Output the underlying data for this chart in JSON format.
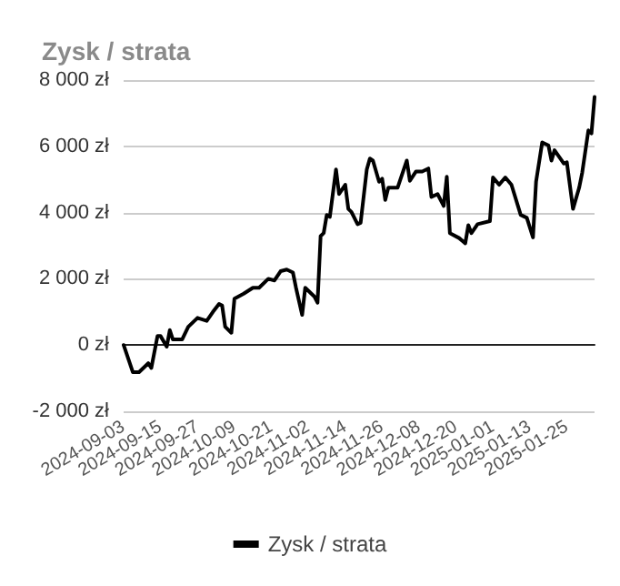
{
  "chart_data": {
    "type": "line",
    "title": "Zysk / strata",
    "x": [
      "2024-09-03",
      "2024-09-06",
      "2024-09-08",
      "2024-09-11",
      "2024-09-12",
      "2024-09-14",
      "2024-09-15",
      "2024-09-17",
      "2024-09-18",
      "2024-09-19",
      "2024-09-22",
      "2024-09-24",
      "2024-09-27",
      "2024-09-30",
      "2024-10-02",
      "2024-10-04",
      "2024-10-05",
      "2024-10-06",
      "2024-10-08",
      "2024-10-09",
      "2024-10-12",
      "2024-10-15",
      "2024-10-17",
      "2024-10-20",
      "2024-10-22",
      "2024-10-24",
      "2024-10-26",
      "2024-10-28",
      "2024-10-29",
      "2024-10-31",
      "2024-11-01",
      "2024-11-04",
      "2024-11-05",
      "2024-11-06",
      "2024-11-07",
      "2024-11-08",
      "2024-11-09",
      "2024-11-11",
      "2024-11-12",
      "2024-11-14",
      "2024-11-15",
      "2024-11-16",
      "2024-11-18",
      "2024-11-19",
      "2024-11-21",
      "2024-11-22",
      "2024-11-23",
      "2024-11-25",
      "2024-11-26",
      "2024-11-27",
      "2024-11-28",
      "2024-12-01",
      "2024-12-04",
      "2024-12-05",
      "2024-12-07",
      "2024-12-09",
      "2024-12-11",
      "2024-12-12",
      "2024-12-14",
      "2024-12-16",
      "2024-12-17",
      "2024-12-18",
      "2024-12-21",
      "2024-12-23",
      "2024-12-24",
      "2024-12-25",
      "2024-12-27",
      "2024-12-31",
      "2025-01-01",
      "2025-01-03",
      "2025-01-05",
      "2025-01-07",
      "2025-01-10",
      "2025-01-12",
      "2025-01-14",
      "2025-01-15",
      "2025-01-17",
      "2025-01-19",
      "2025-01-20",
      "2025-01-21",
      "2025-01-24",
      "2025-01-25",
      "2025-01-27",
      "2025-01-29",
      "2025-01-30",
      "2025-02-01",
      "2025-02-02",
      "2025-02-03"
    ],
    "series": [
      {
        "name": "Zysk / strata",
        "color": "#000000",
        "values": [
          0,
          -820,
          -820,
          -550,
          -690,
          270,
          270,
          -50,
          450,
          170,
          170,
          550,
          820,
          730,
          1000,
          1240,
          1190,
          550,
          370,
          1400,
          1550,
          1730,
          1730,
          2000,
          1950,
          2230,
          2280,
          2190,
          1730,
          910,
          1730,
          1460,
          1280,
          3290,
          3380,
          3930,
          3870,
          5300,
          4560,
          4840,
          4110,
          4020,
          3650,
          3690,
          5300,
          5630,
          5570,
          4930,
          5020,
          4380,
          4750,
          4750,
          5570,
          4960,
          5240,
          5240,
          5330,
          4470,
          4560,
          4200,
          5080,
          3380,
          3230,
          3070,
          3620,
          3380,
          3650,
          3740,
          5060,
          4840,
          5060,
          4840,
          3930,
          3840,
          3250,
          4930,
          6120,
          6030,
          5570,
          5880,
          5480,
          5520,
          4110,
          4750,
          5210,
          6480,
          6390,
          7490
        ]
      }
    ],
    "xlim": [
      "2024-09-03",
      "2025-02-03"
    ],
    "xticks": [
      "2024-09-03",
      "2024-09-15",
      "2024-09-27",
      "2024-10-09",
      "2024-10-21",
      "2024-11-02",
      "2024-11-14",
      "2024-11-26",
      "2024-12-08",
      "2024-12-20",
      "2025-01-01",
      "2025-01-13",
      "2025-01-25"
    ],
    "ylim": [
      -2000,
      8000
    ],
    "yticks": [
      {
        "value": -2000,
        "label": "-2 000 zł"
      },
      {
        "value": 0,
        "label": "0 zł"
      },
      {
        "value": 2000,
        "label": "2 000 zł"
      },
      {
        "value": 4000,
        "label": "4 000 zł"
      },
      {
        "value": 6000,
        "label": "6 000 zł"
      },
      {
        "value": 8000,
        "label": "8 000 zł"
      }
    ],
    "grid": "y",
    "legend": "bottom",
    "marker": "none",
    "line_style": "solid"
  }
}
